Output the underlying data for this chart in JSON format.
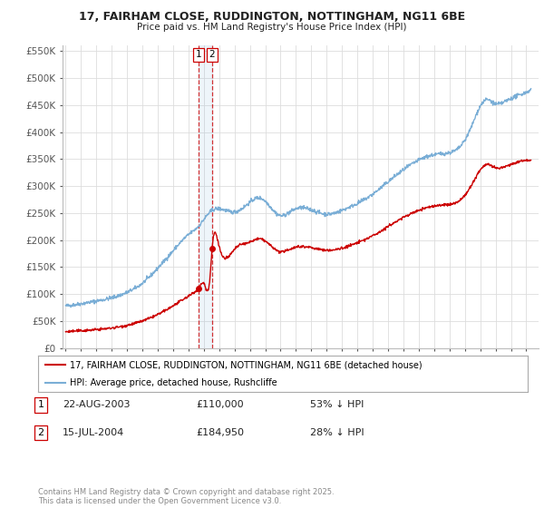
{
  "title_line1": "17, FAIRHAM CLOSE, RUDDINGTON, NOTTINGHAM, NG11 6BE",
  "title_line2": "Price paid vs. HM Land Registry's House Price Index (HPI)",
  "ylim": [
    0,
    560000
  ],
  "yticks": [
    0,
    50000,
    100000,
    150000,
    200000,
    250000,
    300000,
    350000,
    400000,
    450000,
    500000,
    550000
  ],
  "ytick_labels": [
    "£0",
    "£50K",
    "£100K",
    "£150K",
    "£200K",
    "£250K",
    "£300K",
    "£350K",
    "£400K",
    "£450K",
    "£500K",
    "£550K"
  ],
  "xlim_start": 1994.8,
  "xlim_end": 2025.8,
  "sale1_x": 2003.64,
  "sale1_y": 110000,
  "sale1_label": "1",
  "sale2_x": 2004.54,
  "sale2_y": 184950,
  "sale2_label": "2",
  "legend_line1": "17, FAIRHAM CLOSE, RUDDINGTON, NOTTINGHAM, NG11 6BE (detached house)",
  "legend_line2": "HPI: Average price, detached house, Rushcliffe",
  "annotation1_date": "22-AUG-2003",
  "annotation1_price": "£110,000",
  "annotation1_hpi": "53% ↓ HPI",
  "annotation2_date": "15-JUL-2004",
  "annotation2_price": "£184,950",
  "annotation2_hpi": "28% ↓ HPI",
  "footer": "Contains HM Land Registry data © Crown copyright and database right 2025.\nThis data is licensed under the Open Government Licence v3.0.",
  "red_color": "#cc0000",
  "blue_color": "#7aaed6",
  "bg_color": "#ffffff",
  "grid_color": "#dddddd"
}
